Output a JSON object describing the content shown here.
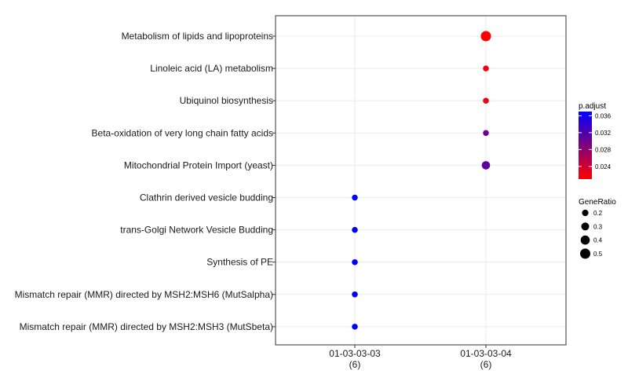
{
  "chart_data": {
    "type": "scatter",
    "title": "",
    "xlabel": "",
    "ylabel": "",
    "x_categories": [
      {
        "label": "01-03-03-03",
        "count": "(6)"
      },
      {
        "label": "01-03-03-04",
        "count": "(6)"
      }
    ],
    "y_categories": [
      "Metabolism of lipids and lipoproteins",
      "Linoleic acid (LA) metabolism",
      "Ubiquinol biosynthesis",
      "Beta-oxidation of very long chain fatty acids",
      "Mitochondrial Protein Import (yeast)",
      "Clathrin derived vesicle budding",
      "trans-Golgi Network Vesicle Budding",
      "Synthesis of PE",
      "Mismatch repair (MMR) directed by MSH2:MSH6 (MutSalpha)",
      "Mismatch repair (MMR) directed by MSH2:MSH3 (MutSbeta)"
    ],
    "points": [
      {
        "x": "01-03-03-04",
        "y": "Metabolism of lipids and lipoproteins",
        "gene_ratio": 0.5,
        "p_adjust": 0.021
      },
      {
        "x": "01-03-03-04",
        "y": "Linoleic acid (LA) metabolism",
        "gene_ratio": 0.167,
        "p_adjust": 0.022
      },
      {
        "x": "01-03-03-04",
        "y": "Ubiquinol biosynthesis",
        "gene_ratio": 0.167,
        "p_adjust": 0.022
      },
      {
        "x": "01-03-03-04",
        "y": "Beta-oxidation of very long chain fatty acids",
        "gene_ratio": 0.167,
        "p_adjust": 0.03
      },
      {
        "x": "01-03-03-04",
        "y": "Mitochondrial Protein Import (yeast)",
        "gene_ratio": 0.333,
        "p_adjust": 0.031
      },
      {
        "x": "01-03-03-03",
        "y": "Clathrin derived vesicle budding",
        "gene_ratio": 0.167,
        "p_adjust": 0.037
      },
      {
        "x": "01-03-03-03",
        "y": "trans-Golgi Network Vesicle Budding",
        "gene_ratio": 0.167,
        "p_adjust": 0.037
      },
      {
        "x": "01-03-03-03",
        "y": "Synthesis of PE",
        "gene_ratio": 0.167,
        "p_adjust": 0.037
      },
      {
        "x": "01-03-03-03",
        "y": "Mismatch repair (MMR) directed by MSH2:MSH6 (MutSalpha)",
        "gene_ratio": 0.167,
        "p_adjust": 0.037
      },
      {
        "x": "01-03-03-03",
        "y": "Mismatch repair (MMR) directed by MSH2:MSH3 (MutSbeta)",
        "gene_ratio": 0.167,
        "p_adjust": 0.037
      }
    ],
    "color_legend": {
      "title": "p.adjust",
      "ticks": [
        "0.036",
        "0.032",
        "0.028",
        "0.024"
      ],
      "tick_values": [
        0.036,
        0.032,
        0.028,
        0.024
      ],
      "range": [
        0.021,
        0.037
      ],
      "low_color": "#ff0000",
      "high_color": "#0000ff"
    },
    "size_legend": {
      "title": "GeneRatio",
      "ticks": [
        "0.2",
        "0.3",
        "0.4",
        "0.5"
      ],
      "tick_values": [
        0.2,
        0.3,
        0.4,
        0.5
      ]
    },
    "grid": true,
    "legend_position": "right"
  }
}
